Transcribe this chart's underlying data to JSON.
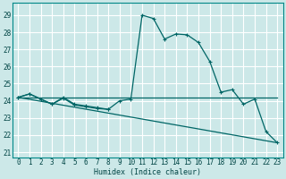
{
  "title": "",
  "xlabel": "Humidex (Indice chaleur)",
  "bg_color": "#cce8e8",
  "grid_color": "#ffffff",
  "line_color": "#006666",
  "xlim": [
    -0.5,
    23.5
  ],
  "ylim": [
    20.7,
    29.7
  ],
  "yticks": [
    21,
    22,
    23,
    24,
    25,
    26,
    27,
    28,
    29
  ],
  "xticks": [
    0,
    1,
    2,
    3,
    4,
    5,
    6,
    7,
    8,
    9,
    10,
    11,
    12,
    13,
    14,
    15,
    16,
    17,
    18,
    19,
    20,
    21,
    22,
    23
  ],
  "series_main": {
    "x": [
      0,
      1,
      2,
      3,
      4,
      5,
      6,
      7,
      8,
      9,
      10,
      11,
      12,
      13,
      14,
      15,
      16,
      17,
      18,
      19,
      20,
      21,
      22,
      23
    ],
    "y": [
      24.2,
      24.4,
      24.1,
      23.8,
      24.2,
      23.8,
      23.7,
      23.6,
      23.5,
      24.0,
      24.1,
      29.0,
      28.8,
      27.6,
      27.9,
      27.85,
      27.4,
      26.3,
      24.5,
      24.65,
      23.8,
      24.1,
      22.2,
      21.55
    ]
  },
  "series_flat": {
    "x": [
      0,
      23
    ],
    "y": [
      24.2,
      24.2
    ]
  },
  "series_trend": {
    "x": [
      0,
      23
    ],
    "y": [
      24.2,
      21.55
    ]
  },
  "series_early": {
    "x": [
      0,
      1,
      2,
      3,
      4,
      5,
      6,
      7,
      8
    ],
    "y": [
      24.2,
      24.4,
      24.1,
      23.8,
      24.15,
      23.75,
      23.65,
      23.55,
      23.5
    ]
  }
}
